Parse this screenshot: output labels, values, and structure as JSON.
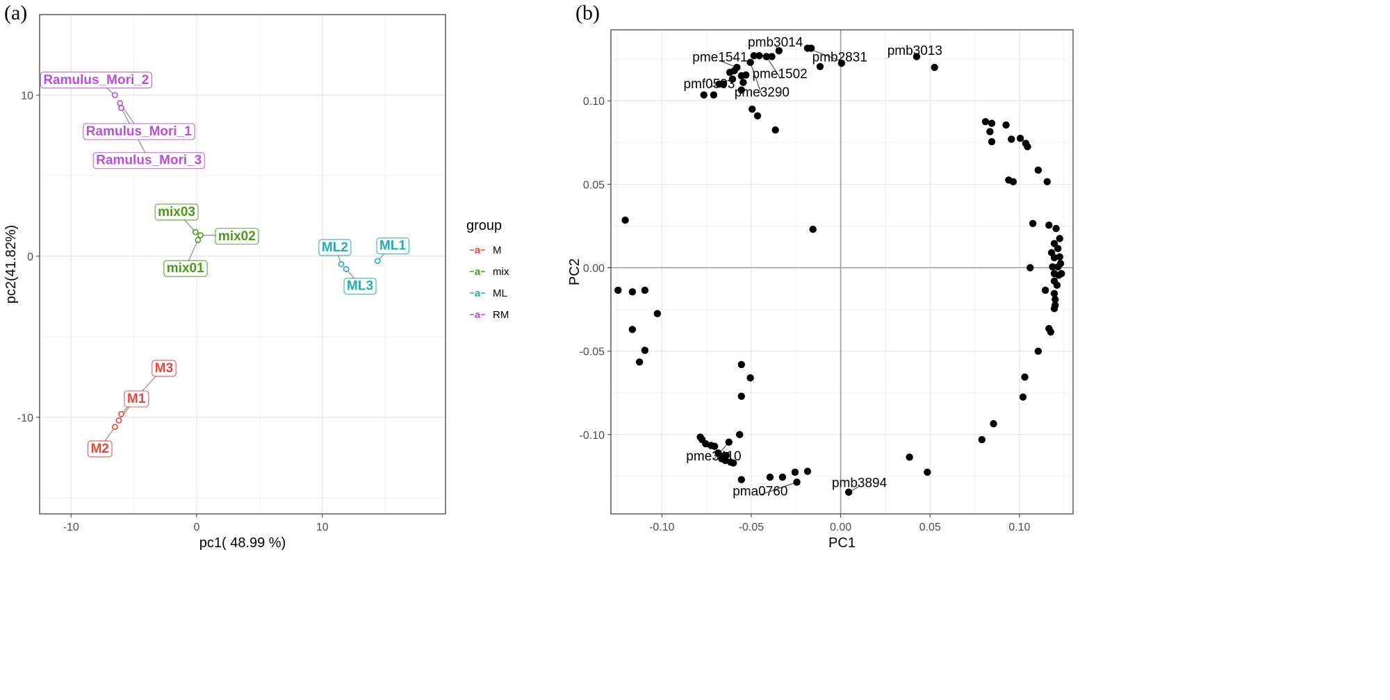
{
  "panels": {
    "a_label": "(a)",
    "b_label": "(b)"
  },
  "chart_data": [
    {
      "type": "scatter",
      "panel": "a",
      "xlabel": "pc1( 48.99 %)",
      "ylabel": "pc2(41.82%)",
      "xlim": [
        -12.5,
        19.8
      ],
      "ylim": [
        -16,
        15
      ],
      "xticks": [
        -10,
        0,
        10
      ],
      "yticks": [
        -10,
        0,
        10
      ],
      "legend": {
        "title": "group",
        "placement": "right",
        "entries": [
          {
            "key": "a",
            "label": "M",
            "color": "#E8463C"
          },
          {
            "key": "a",
            "label": "mix",
            "color": "#4B9A1A"
          },
          {
            "key": "a",
            "label": "ML",
            "color": "#1BAFB5"
          },
          {
            "key": "a",
            "label": "RM",
            "color": "#B94FD6"
          }
        ]
      },
      "points": [
        {
          "label": "Ramulus_Mori_2",
          "group": "RM",
          "x": -6.5,
          "y": 10.0,
          "lx": -8.0,
          "ly": 11.0
        },
        {
          "label": "Ramulus_Mori_1",
          "group": "RM",
          "x": -6.1,
          "y": 9.5,
          "lx": -4.6,
          "ly": 7.8
        },
        {
          "label": "Ramulus_Mori_3",
          "group": "RM",
          "x": -6.0,
          "y": 9.2,
          "lx": -3.8,
          "ly": 6.0
        },
        {
          "label": "mix03",
          "group": "mix",
          "x": -0.1,
          "y": 1.5,
          "lx": -1.6,
          "ly": 2.8
        },
        {
          "label": "mix02",
          "group": "mix",
          "x": 0.3,
          "y": 1.3,
          "lx": 3.2,
          "ly": 1.3
        },
        {
          "label": "mix01",
          "group": "mix",
          "x": 0.1,
          "y": 1.0,
          "lx": -0.9,
          "ly": -0.7
        },
        {
          "label": "ML2",
          "group": "ML",
          "x": 11.5,
          "y": -0.5,
          "lx": 11.0,
          "ly": 0.6
        },
        {
          "label": "ML1",
          "group": "ML",
          "x": 14.4,
          "y": -0.3,
          "lx": 15.6,
          "ly": 0.7
        },
        {
          "label": "ML3",
          "group": "ML",
          "x": 11.9,
          "y": -0.8,
          "lx": 13.0,
          "ly": -1.8
        },
        {
          "label": "M3",
          "group": "M",
          "x": -6.0,
          "y": -9.8,
          "lx": -2.6,
          "ly": -6.9
        },
        {
          "label": "M1",
          "group": "M",
          "x": -6.2,
          "y": -10.2,
          "lx": -4.8,
          "ly": -8.8
        },
        {
          "label": "M2",
          "group": "M",
          "x": -6.5,
          "y": -10.6,
          "lx": -7.7,
          "ly": -11.9
        }
      ]
    },
    {
      "type": "scatter",
      "panel": "b",
      "xlabel": "PC1",
      "ylabel": "PC2",
      "xlim": [
        -0.1285,
        0.13
      ],
      "ylim": [
        -0.1475,
        0.1425
      ],
      "xticks": [
        -0.1,
        -0.05,
        0.0,
        0.05,
        0.1
      ],
      "xtick_labels": [
        "-0.10",
        "-0.05",
        "0.00",
        "0.05",
        "0.10"
      ],
      "yticks": [
        -0.1,
        -0.05,
        0.0,
        0.05,
        0.1
      ],
      "ytick_labels": [
        "-0.10",
        "-0.05",
        "0.00",
        "0.05",
        "0.10"
      ],
      "points": [
        [
          -0.0765,
          0.1035
        ],
        [
          -0.071,
          0.1035
        ],
        [
          -0.068,
          0.11
        ],
        [
          -0.0655,
          0.11
        ],
        [
          -0.0605,
          0.113
        ],
        [
          -0.062,
          0.117
        ],
        [
          -0.0595,
          0.118
        ],
        [
          -0.058,
          0.12
        ],
        [
          -0.0555,
          0.115
        ],
        [
          -0.0545,
          0.111
        ],
        [
          -0.053,
          0.1155
        ],
        [
          -0.0505,
          0.123
        ],
        [
          -0.0485,
          0.127
        ],
        [
          -0.0455,
          0.127
        ],
        [
          -0.0415,
          0.1265
        ],
        [
          -0.0385,
          0.1265
        ],
        [
          -0.0345,
          0.13
        ],
        [
          -0.0555,
          0.1065
        ],
        [
          -0.0495,
          0.095
        ],
        [
          -0.0465,
          0.091
        ],
        [
          -0.0365,
          0.0825
        ],
        [
          -0.0185,
          0.1315
        ],
        [
          -0.0165,
          0.1315
        ],
        [
          -0.0115,
          0.1205
        ],
        [
          0.0005,
          0.1225
        ],
        [
          0.0425,
          0.1265
        ],
        [
          0.0525,
          0.12
        ],
        [
          -0.0155,
          0.023
        ],
        [
          -0.1205,
          0.0285
        ],
        [
          0.081,
          0.0875
        ],
        [
          0.0845,
          0.0865
        ],
        [
          0.0835,
          0.0815
        ],
        [
          0.0845,
          0.0755
        ],
        [
          0.0925,
          0.0855
        ],
        [
          0.0955,
          0.077
        ],
        [
          0.1005,
          0.0775
        ],
        [
          0.1035,
          0.0745
        ],
        [
          0.1045,
          0.0725
        ],
        [
          0.094,
          0.0525
        ],
        [
          0.0965,
          0.0515
        ],
        [
          0.1105,
          0.0585
        ],
        [
          0.1155,
          0.0515
        ],
        [
          0.1075,
          0.0265
        ],
        [
          0.1165,
          0.0255
        ],
        [
          0.1205,
          0.0235
        ],
        [
          0.1225,
          0.0175
        ],
        [
          0.1195,
          0.0145
        ],
        [
          0.1215,
          0.0115
        ],
        [
          0.118,
          0.009
        ],
        [
          0.1195,
          0.006
        ],
        [
          0.1225,
          0.0065
        ],
        [
          0.123,
          0.0025
        ],
        [
          0.1215,
          0.0005
        ],
        [
          0.1185,
          0.0005
        ],
        [
          0.106,
          0.0
        ],
        [
          0.1195,
          -0.0035
        ],
        [
          0.122,
          -0.0045
        ],
        [
          0.1235,
          -0.0035
        ],
        [
          0.1195,
          -0.008
        ],
        [
          0.121,
          -0.0105
        ],
        [
          0.1145,
          -0.0135
        ],
        [
          0.1195,
          -0.0155
        ],
        [
          0.12,
          -0.019
        ],
        [
          0.12,
          -0.0225
        ],
        [
          0.1195,
          -0.0245
        ],
        [
          0.1165,
          -0.0365
        ],
        [
          0.1175,
          -0.0385
        ],
        [
          0.1105,
          -0.05
        ],
        [
          0.103,
          -0.0655
        ],
        [
          0.102,
          -0.0775
        ],
        [
          0.0855,
          -0.0935
        ],
        [
          0.079,
          -0.103
        ],
        [
          -0.1245,
          -0.0135
        ],
        [
          -0.1165,
          -0.0145
        ],
        [
          -0.1095,
          -0.0135
        ],
        [
          -0.1025,
          -0.0275
        ],
        [
          -0.1165,
          -0.037
        ],
        [
          -0.1095,
          -0.0495
        ],
        [
          -0.1125,
          -0.0565
        ],
        [
          -0.0555,
          -0.058
        ],
        [
          -0.0505,
          -0.066
        ],
        [
          -0.0555,
          -0.077
        ],
        [
          -0.0565,
          -0.1
        ],
        [
          -0.0625,
          -0.1045
        ],
        [
          -0.0785,
          -0.1015
        ],
        [
          -0.0775,
          -0.103
        ],
        [
          -0.0755,
          -0.1055
        ],
        [
          -0.0725,
          -0.1065
        ],
        [
          -0.0705,
          -0.107
        ],
        [
          -0.0685,
          -0.111
        ],
        [
          -0.0655,
          -0.113
        ],
        [
          -0.064,
          -0.1125
        ],
        [
          -0.0615,
          -0.1165
        ],
        [
          -0.0645,
          -0.1155
        ],
        [
          -0.0665,
          -0.1145
        ],
        [
          -0.06,
          -0.117
        ],
        [
          -0.0555,
          -0.127
        ],
        [
          -0.0395,
          -0.1255
        ],
        [
          -0.0325,
          -0.1255
        ],
        [
          -0.0255,
          -0.1225
        ],
        [
          -0.0185,
          -0.122
        ],
        [
          -0.0245,
          -0.1285
        ],
        [
          0.0045,
          -0.1345
        ],
        [
          0.0385,
          -0.1135
        ],
        [
          0.0485,
          -0.1225
        ]
      ],
      "annotations": [
        {
          "label": "pmb3014",
          "x": -0.0365,
          "y": 0.1355,
          "px": -0.0345,
          "py": 0.13
        },
        {
          "label": "pme1541",
          "x": -0.0675,
          "y": 0.1265,
          "px": -0.058,
          "py": 0.12
        },
        {
          "label": "pmb2831",
          "x": -0.0005,
          "y": 0.1265,
          "px": -0.0185,
          "py": 0.1315
        },
        {
          "label": "pmb3013",
          "x": 0.0415,
          "y": 0.1305,
          "px": 0.0425,
          "py": 0.1265
        },
        {
          "label": "pme1502",
          "x": -0.034,
          "y": 0.1165,
          "px": -0.0415,
          "py": 0.1265
        },
        {
          "label": "pmf0593",
          "x": -0.0735,
          "y": 0.1105,
          "px": -0.0605,
          "py": 0.113
        },
        {
          "label": "pme3290",
          "x": -0.044,
          "y": 0.1055,
          "px": -0.0505,
          "py": 0.123
        },
        {
          "label": "pme3410",
          "x": -0.071,
          "y": -0.1125,
          "px": -0.0625,
          "py": -0.1045
        },
        {
          "label": "pma0760",
          "x": -0.045,
          "y": -0.1335,
          "px": -0.0245,
          "py": -0.1285
        },
        {
          "label": "pmb3894",
          "x": 0.0105,
          "y": -0.1285,
          "px": 0.0045,
          "py": -0.1345
        }
      ]
    }
  ]
}
